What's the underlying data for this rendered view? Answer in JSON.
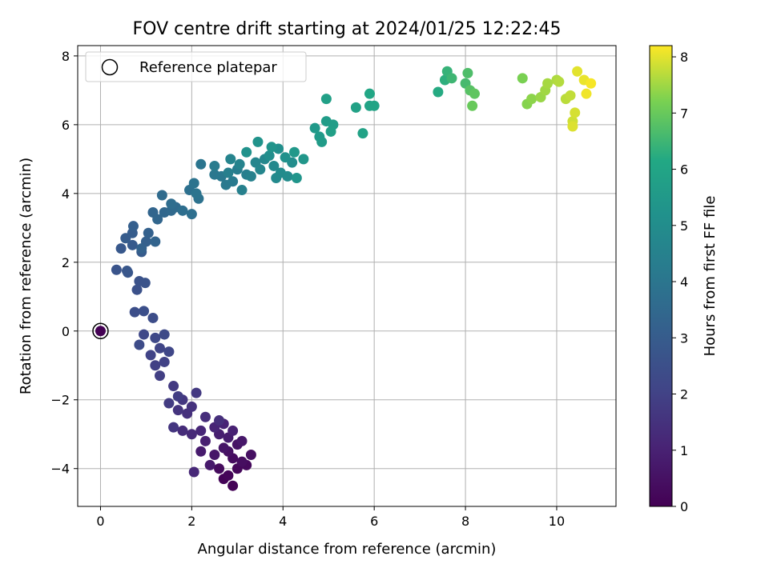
{
  "chart_data": {
    "type": "scatter",
    "title": "FOV centre drift starting at 2024/01/25 12:22:45",
    "xlabel": "Angular distance from reference (arcmin)",
    "ylabel": "Rotation from reference (arcmin)",
    "xlim": [
      -0.5,
      11.3
    ],
    "ylim": [
      -5.1,
      8.3
    ],
    "xticks": [
      0,
      2,
      4,
      6,
      8,
      10
    ],
    "yticks": [
      -4,
      -2,
      0,
      2,
      4,
      6,
      8
    ],
    "grid": true,
    "legend": {
      "placement": "top-left",
      "entries": [
        "Reference platepar"
      ]
    },
    "colorbar": {
      "label": "Hours from first FF file",
      "colormap": "viridis",
      "range": [
        0,
        8.2
      ],
      "ticks": [
        0,
        1,
        2,
        3,
        4,
        5,
        6,
        7,
        8
      ]
    },
    "reference_point": {
      "x": 0,
      "y": 0
    },
    "points": [
      [
        2.9,
        -4.5,
        0.05
      ],
      [
        2.7,
        -4.3,
        0.1
      ],
      [
        2.8,
        -4.2,
        0.15
      ],
      [
        3.0,
        -4.0,
        0.2
      ],
      [
        3.2,
        -3.9,
        0.25
      ],
      [
        2.6,
        -4.0,
        0.3
      ],
      [
        2.9,
        -3.7,
        0.35
      ],
      [
        3.1,
        -3.8,
        0.4
      ],
      [
        3.3,
        -3.6,
        0.45
      ],
      [
        2.8,
        -3.5,
        0.5
      ],
      [
        3.0,
        -3.3,
        0.55
      ],
      [
        2.7,
        -3.4,
        0.6
      ],
      [
        2.5,
        -3.6,
        0.65
      ],
      [
        3.1,
        -3.2,
        0.7
      ],
      [
        2.4,
        -3.9,
        0.75
      ],
      [
        2.2,
        -3.5,
        0.8
      ],
      [
        2.8,
        -3.1,
        0.85
      ],
      [
        2.6,
        -3.0,
        0.9
      ],
      [
        2.3,
        -3.2,
        0.95
      ],
      [
        2.9,
        -2.9,
        1.0
      ],
      [
        2.7,
        -2.7,
        1.05
      ],
      [
        2.5,
        -2.8,
        1.1
      ],
      [
        2.2,
        -2.9,
        1.15
      ],
      [
        2.05,
        -4.1,
        1.2
      ],
      [
        2.0,
        -3.0,
        1.25
      ],
      [
        1.8,
        -2.9,
        1.3
      ],
      [
        2.3,
        -2.5,
        1.35
      ],
      [
        2.6,
        -2.6,
        1.4
      ],
      [
        1.9,
        -2.4,
        1.45
      ],
      [
        2.0,
        -2.2,
        1.5
      ],
      [
        1.7,
        -2.3,
        1.55
      ],
      [
        1.6,
        -2.8,
        1.6
      ],
      [
        1.8,
        -2.0,
        1.65
      ],
      [
        2.1,
        -1.8,
        1.7
      ],
      [
        1.6,
        -1.6,
        1.75
      ],
      [
        1.5,
        -2.1,
        1.8
      ],
      [
        1.7,
        -1.9,
        1.85
      ],
      [
        1.3,
        -1.3,
        1.9
      ],
      [
        1.2,
        -1.0,
        1.95
      ],
      [
        1.4,
        -0.9,
        2.0
      ],
      [
        1.1,
        -0.7,
        2.05
      ],
      [
        1.3,
        -0.5,
        2.1
      ],
      [
        1.5,
        -0.6,
        2.15
      ],
      [
        0.95,
        -0.1,
        2.2
      ],
      [
        1.2,
        -0.2,
        2.25
      ],
      [
        1.4,
        -0.1,
        2.3
      ],
      [
        0.85,
        -0.4,
        2.35
      ],
      [
        1.15,
        0.38,
        2.4
      ],
      [
        0.75,
        0.55,
        2.45
      ],
      [
        0.95,
        0.58,
        2.5
      ],
      [
        0.8,
        1.2,
        2.55
      ],
      [
        0.85,
        1.45,
        2.6
      ],
      [
        0.98,
        1.4,
        2.65
      ],
      [
        0.35,
        1.78,
        2.7
      ],
      [
        0.6,
        1.7,
        2.75
      ],
      [
        0.58,
        1.75,
        2.8
      ],
      [
        0.45,
        2.4,
        2.85
      ],
      [
        0.7,
        2.5,
        2.9
      ],
      [
        0.9,
        2.3,
        2.95
      ],
      [
        0.55,
        2.7,
        3.0
      ],
      [
        0.7,
        2.85,
        3.05
      ],
      [
        0.72,
        3.05,
        3.1
      ],
      [
        1.0,
        2.6,
        3.15
      ],
      [
        1.05,
        2.85,
        3.2
      ],
      [
        0.9,
        2.4,
        3.25
      ],
      [
        1.2,
        2.6,
        3.3
      ],
      [
        1.15,
        3.45,
        3.35
      ],
      [
        1.25,
        3.25,
        3.4
      ],
      [
        1.4,
        3.45,
        3.45
      ],
      [
        1.55,
        3.5,
        3.5
      ],
      [
        1.65,
        3.6,
        3.55
      ],
      [
        1.35,
        3.95,
        3.6
      ],
      [
        1.55,
        3.7,
        3.65
      ],
      [
        1.8,
        3.5,
        3.7
      ],
      [
        2.0,
        3.4,
        3.75
      ],
      [
        1.95,
        4.1,
        3.8
      ],
      [
        2.15,
        3.85,
        3.85
      ],
      [
        2.05,
        4.3,
        3.9
      ],
      [
        2.1,
        4.0,
        3.95
      ],
      [
        2.2,
        4.85,
        4.0
      ],
      [
        2.5,
        4.55,
        4.05
      ],
      [
        2.65,
        4.5,
        4.1
      ],
      [
        2.75,
        4.25,
        4.15
      ],
      [
        2.9,
        4.35,
        4.2
      ],
      [
        2.5,
        4.8,
        4.25
      ],
      [
        3.0,
        4.7,
        4.3
      ],
      [
        3.2,
        4.55,
        4.35
      ],
      [
        2.8,
        4.6,
        4.4
      ],
      [
        3.1,
        4.1,
        4.45
      ],
      [
        3.3,
        4.5,
        4.5
      ],
      [
        3.05,
        4.85,
        4.55
      ],
      [
        2.85,
        5.0,
        4.6
      ],
      [
        3.4,
        4.9,
        4.65
      ],
      [
        3.5,
        4.7,
        4.7
      ],
      [
        3.6,
        5.0,
        4.75
      ],
      [
        3.8,
        4.8,
        4.8
      ],
      [
        3.85,
        4.45,
        4.85
      ],
      [
        3.95,
        4.6,
        4.9
      ],
      [
        4.1,
        4.5,
        4.95
      ],
      [
        4.2,
        4.9,
        5.0
      ],
      [
        3.7,
        5.1,
        5.05
      ],
      [
        3.9,
        5.3,
        5.1
      ],
      [
        4.05,
        5.05,
        5.15
      ],
      [
        3.2,
        5.2,
        5.2
      ],
      [
        3.45,
        5.5,
        5.25
      ],
      [
        3.75,
        5.35,
        5.3
      ],
      [
        4.3,
        4.45,
        5.35
      ],
      [
        4.45,
        5.0,
        5.4
      ],
      [
        4.25,
        5.2,
        5.45
      ],
      [
        4.7,
        5.9,
        5.5
      ],
      [
        4.8,
        5.65,
        5.55
      ],
      [
        4.85,
        5.5,
        5.6
      ],
      [
        4.95,
        6.1,
        5.65
      ],
      [
        5.1,
        6.0,
        5.7
      ],
      [
        5.05,
        5.8,
        5.75
      ],
      [
        4.95,
        6.75,
        5.8
      ],
      [
        5.6,
        6.5,
        5.85
      ],
      [
        5.75,
        5.75,
        5.9
      ],
      [
        5.9,
        6.55,
        5.95
      ],
      [
        6.0,
        6.55,
        6.0
      ],
      [
        5.9,
        6.9,
        6.05
      ],
      [
        7.4,
        6.95,
        6.2
      ],
      [
        7.55,
        7.3,
        6.3
      ],
      [
        7.6,
        7.55,
        6.4
      ],
      [
        7.7,
        7.35,
        6.5
      ],
      [
        8.0,
        7.2,
        6.6
      ],
      [
        8.05,
        7.5,
        6.7
      ],
      [
        8.1,
        7.0,
        6.8
      ],
      [
        8.2,
        6.9,
        6.9
      ],
      [
        8.15,
        6.55,
        7.0
      ],
      [
        9.25,
        7.35,
        7.2
      ],
      [
        9.35,
        6.6,
        7.3
      ],
      [
        9.45,
        6.75,
        7.35
      ],
      [
        9.65,
        6.8,
        7.45
      ],
      [
        9.75,
        7.0,
        7.5
      ],
      [
        9.8,
        7.2,
        7.55
      ],
      [
        10.0,
        7.3,
        7.6
      ],
      [
        10.05,
        7.25,
        7.65
      ],
      [
        10.2,
        6.75,
        7.7
      ],
      [
        10.3,
        6.85,
        7.75
      ],
      [
        10.35,
        6.1,
        7.85
      ],
      [
        10.4,
        6.35,
        7.9
      ],
      [
        10.35,
        5.95,
        7.95
      ],
      [
        10.45,
        7.55,
        8.0
      ],
      [
        10.6,
        7.3,
        8.05
      ],
      [
        10.65,
        6.9,
        8.1
      ],
      [
        10.75,
        7.2,
        8.15
      ]
    ],
    "colors": {
      "background": "#ffffff",
      "grid": "#b0b0b0",
      "axes": "#000000",
      "reference_marker_edge": "#000000",
      "reference_marker_fill": "#440154"
    }
  }
}
